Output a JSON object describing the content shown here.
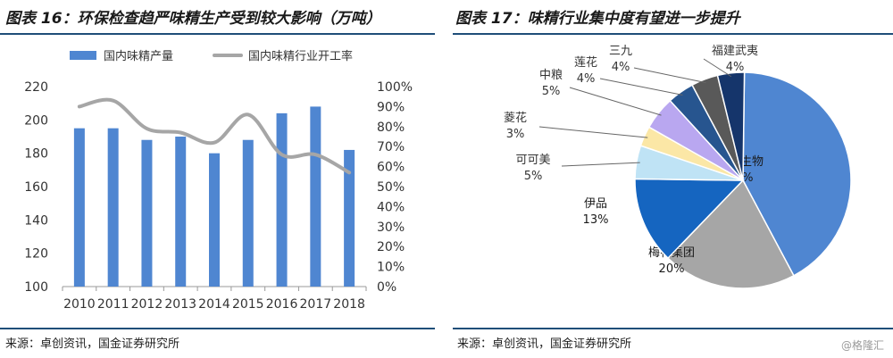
{
  "left": {
    "title": "图表 16：环保检查趋严味精生产受到较大影响（万吨）",
    "source": "来源：卓创资讯，国金证券研究所"
  },
  "right": {
    "title": "图表 17：味精行业集中度有望进一步提升",
    "source": "来源：卓创资讯，国金证券研究所"
  },
  "watermark": "@格隆汇",
  "chart_data": [
    {
      "type": "bar",
      "categories": [
        "2010",
        "2011",
        "2012",
        "2013",
        "2014",
        "2015",
        "2016",
        "2017",
        "2018"
      ],
      "series": [
        {
          "name": "国内味精产量",
          "type": "bar",
          "axis": "left",
          "values": [
            195,
            195,
            188,
            190,
            180,
            188,
            204,
            208,
            182
          ]
        },
        {
          "name": "国内味精行业开工率",
          "type": "line",
          "axis": "right",
          "values": [
            90,
            93,
            79,
            77,
            72,
            86,
            66,
            66,
            57
          ]
        }
      ],
      "ylim": [
        100,
        220
      ],
      "yticks": [
        100,
        120,
        140,
        160,
        180,
        200,
        220
      ],
      "y2lim": [
        0,
        100
      ],
      "y2ticks": [
        "0%",
        "10%",
        "20%",
        "30%",
        "40%",
        "50%",
        "60%",
        "70%",
        "80%",
        "90%",
        "100%"
      ],
      "legend": "top",
      "grid": false,
      "colors": {
        "bar": "#4f86d1",
        "line": "#a6a6a6"
      }
    },
    {
      "type": "pie",
      "slices": [
        {
          "label": "阜丰生物",
          "value": 42,
          "text": "42%",
          "color": "#4f86d1"
        },
        {
          "label": "梅花集团",
          "value": 20,
          "text": "20%",
          "color": "#a6a6a6"
        },
        {
          "label": "伊品",
          "value": 13,
          "text": "13%",
          "color": "#1565c0"
        },
        {
          "label": "可可美",
          "value": 5,
          "text": "5%",
          "color": "#bfe3f5"
        },
        {
          "label": "菱花",
          "value": 3,
          "text": "3%",
          "color": "#fbe7a6"
        },
        {
          "label": "中粮",
          "value": 5,
          "text": "5%",
          "color": "#b9a7f0"
        },
        {
          "label": "莲花",
          "value": 4,
          "text": "4%",
          "color": "#27558f"
        },
        {
          "label": "三九",
          "value": 4,
          "text": "4%",
          "color": "#595959"
        },
        {
          "label": "福建武夷",
          "value": 4,
          "text": "4%",
          "color": "#15356b"
        }
      ]
    }
  ]
}
